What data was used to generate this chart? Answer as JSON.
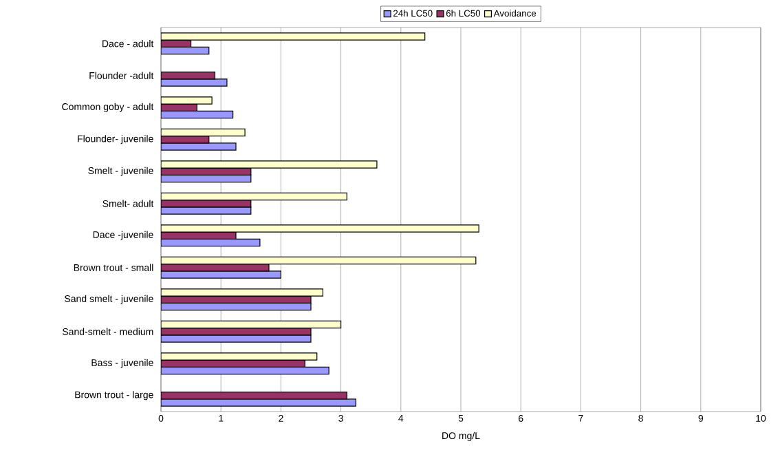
{
  "chart_data": {
    "type": "bar",
    "orientation": "horizontal",
    "xlabel": "DO mg/L",
    "categories": [
      "Dace - adult",
      "Flounder -adult",
      "Common goby - adult",
      "Flounder- juvenile",
      "Smelt - juvenile",
      "Smelt- adult",
      "Dace -juvenile",
      "Brown trout - small",
      "Sand smelt - juvenile",
      "Sand-smelt - medium",
      "Bass -  juvenile",
      "Brown trout - large"
    ],
    "series": [
      {
        "name": "24h LC50",
        "color": "#9999ff",
        "values": [
          0.8,
          1.1,
          1.2,
          1.25,
          1.5,
          1.5,
          1.65,
          2.0,
          2.5,
          2.5,
          2.8,
          3.25
        ]
      },
      {
        "name": "6h LC50",
        "color": "#993366",
        "values": [
          0.5,
          0.9,
          0.6,
          0.8,
          1.5,
          1.5,
          1.25,
          1.8,
          2.5,
          2.5,
          2.4,
          3.1
        ]
      },
      {
        "name": "Avoidance",
        "color": "#ffffcc",
        "values": [
          4.4,
          null,
          0.85,
          1.4,
          3.6,
          3.1,
          5.3,
          5.25,
          2.7,
          3.0,
          2.6,
          null
        ]
      }
    ],
    "xlim": [
      0,
      10
    ],
    "xticks": [
      0,
      1,
      2,
      3,
      4,
      5,
      6,
      7,
      8,
      9,
      10
    ],
    "grid": "x",
    "legend": "top"
  }
}
